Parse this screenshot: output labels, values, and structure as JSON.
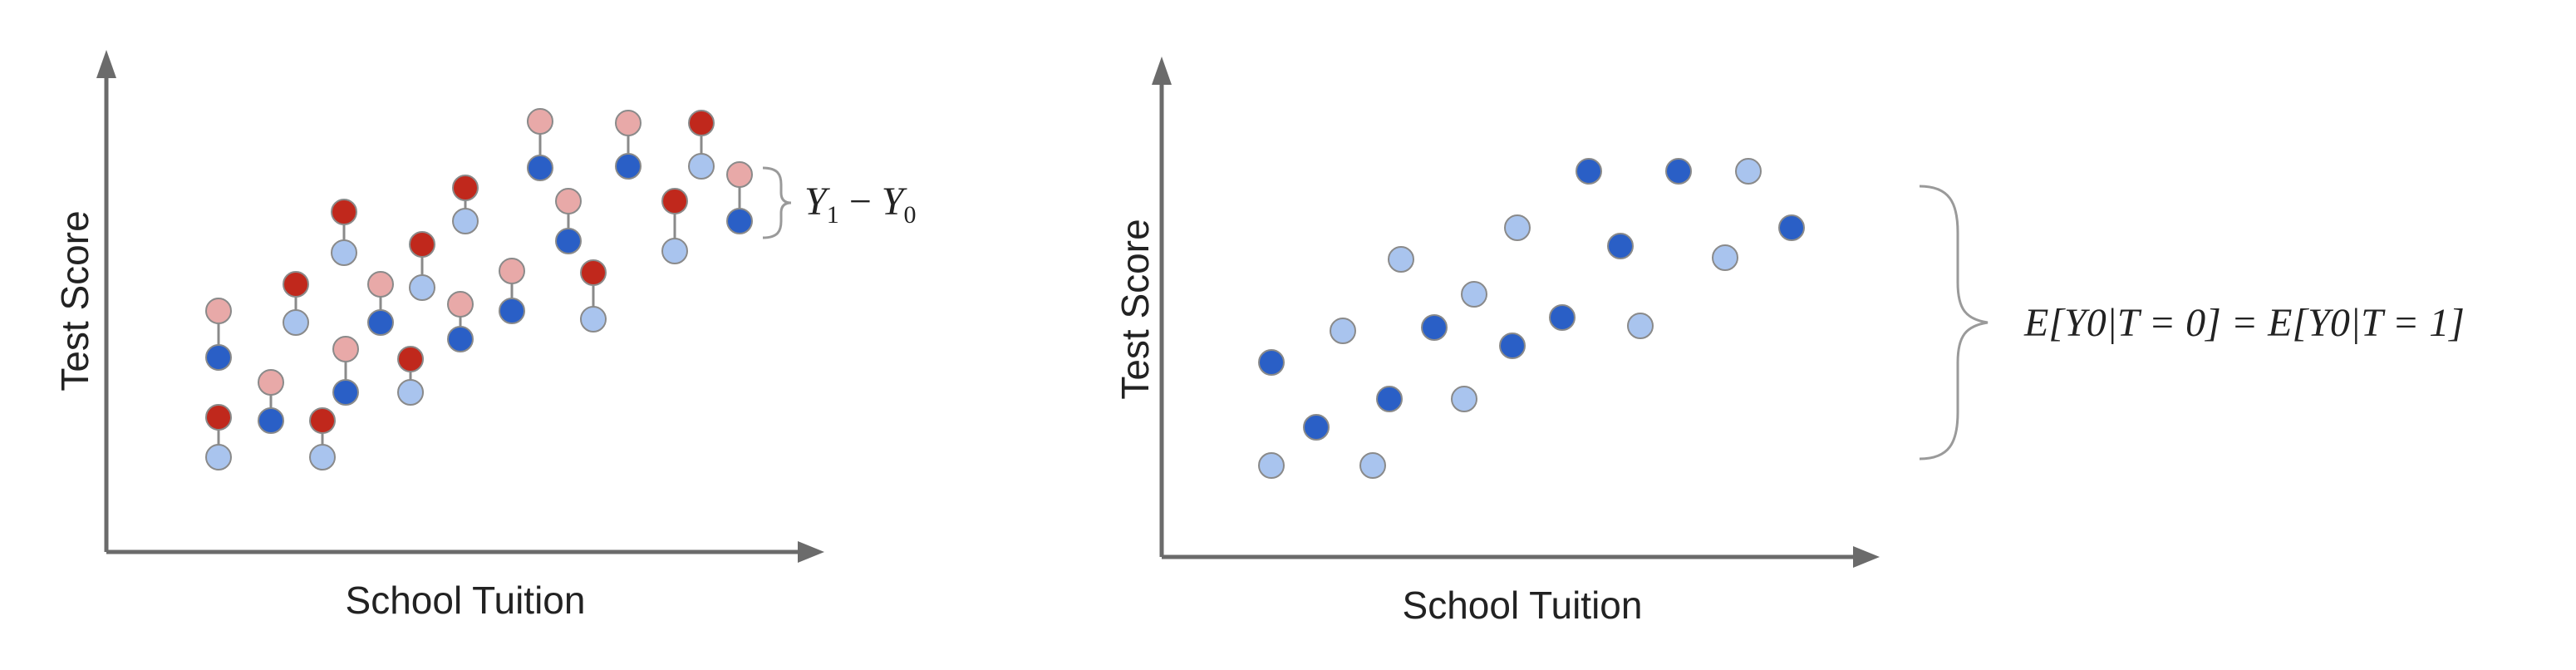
{
  "colors": {
    "axis": "#6b6b6b",
    "bracket": "#9a9a9a",
    "dark_red": "#c0281c",
    "light_red": "#e8a9a8",
    "dark_blue": "#2a5fc6",
    "light_blue": "#a9c4ee",
    "marker_stroke": "#8a8a8a"
  },
  "panels": [
    {
      "xlabel": "School Tuition",
      "ylabel": "Test Score",
      "annotation": {
        "y1": "Y",
        "y1_sub": "1",
        "minus": "−",
        "y0": "Y",
        "y0_sub": "0"
      }
    },
    {
      "xlabel": "School Tuition",
      "ylabel": "Test Score",
      "annotation": {
        "text": "E[Y0|T = 0] = E[Y0|T = 1]"
      }
    }
  ]
}
